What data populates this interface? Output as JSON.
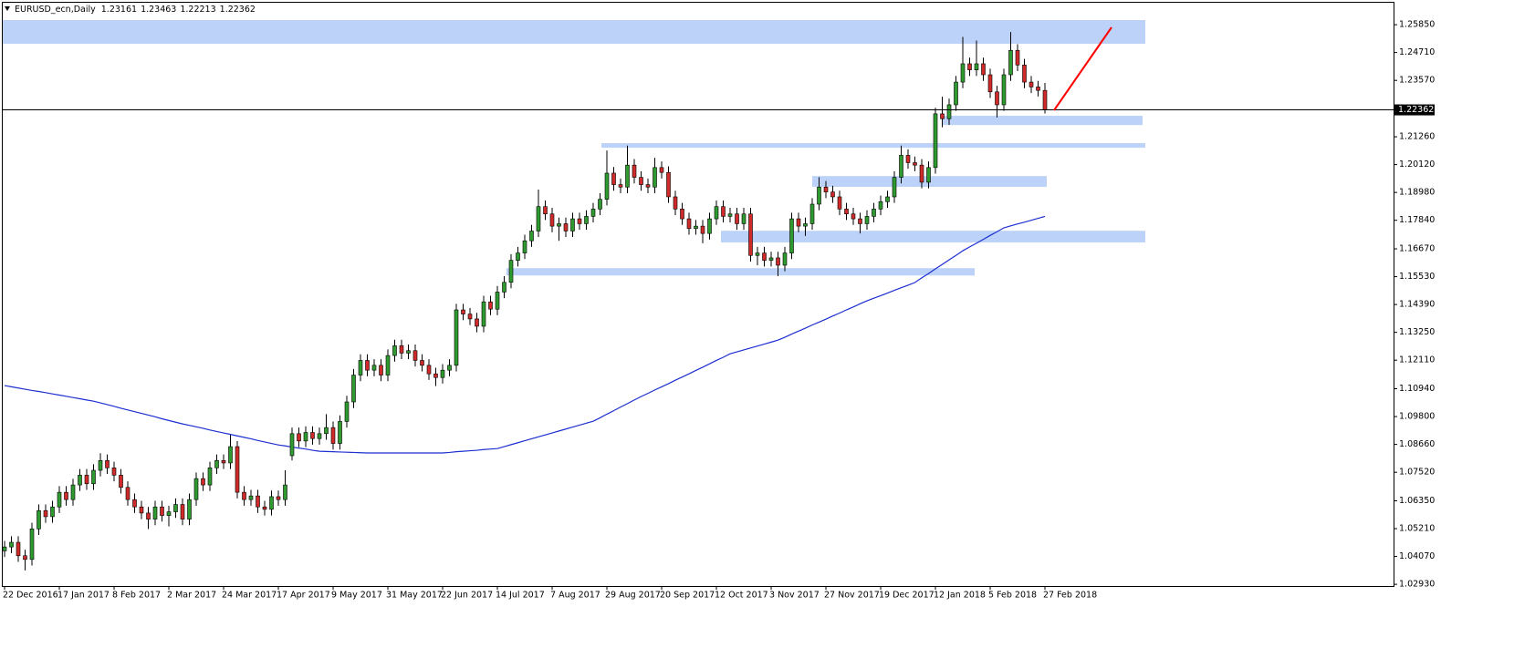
{
  "chart_data": {
    "type": "candlestick",
    "title": "EURUSD_ecn,Daily",
    "categories": [
      "22 Dec 2016",
      null,
      null,
      null,
      null,
      null,
      null,
      null,
      "17 Jan 2017",
      null,
      null,
      null,
      null,
      null,
      null,
      null,
      "8 Feb 2017",
      null,
      null,
      null,
      null,
      null,
      null,
      null,
      "2 Mar 2017",
      null,
      null,
      null,
      null,
      null,
      null,
      null,
      "24 Mar 2017",
      null,
      null,
      null,
      null,
      null,
      null,
      null,
      "17 Apr 2017",
      null,
      null,
      null,
      null,
      null,
      null,
      null,
      "9 May 2017",
      null,
      null,
      null,
      null,
      null,
      null,
      null,
      "31 May 2017",
      null,
      null,
      null,
      null,
      null,
      null,
      null,
      "22 Jun 2017",
      null,
      null,
      null,
      null,
      null,
      null,
      null,
      "14 Jul 2017",
      null,
      null,
      null,
      null,
      null,
      null,
      null,
      "7 Aug 2017",
      null,
      null,
      null,
      null,
      null,
      null,
      null,
      "29 Aug 2017",
      null,
      null,
      null,
      null,
      null,
      null,
      null,
      "20 Sep 2017",
      null,
      null,
      null,
      null,
      null,
      null,
      null,
      "12 Oct 2017",
      null,
      null,
      null,
      null,
      null,
      null,
      null,
      "3 Nov 2017",
      null,
      null,
      null,
      null,
      null,
      null,
      null,
      "27 Nov 2017",
      null,
      null,
      null,
      null,
      null,
      null,
      null,
      "19 Dec 2017",
      null,
      null,
      null,
      null,
      null,
      null,
      null,
      "12 Jan 2018",
      null,
      null,
      null,
      null,
      null,
      null,
      null,
      "5 Feb 2018",
      null,
      null,
      null,
      null,
      null,
      null,
      null,
      "27 Feb 2018"
    ],
    "candles": [
      [
        1.043,
        1.0471,
        1.0405,
        1.0446
      ],
      [
        1.0446,
        1.049,
        1.0421,
        1.0465
      ],
      [
        1.0465,
        1.049,
        1.0385,
        1.041
      ],
      [
        1.041,
        1.0435,
        1.035,
        1.0395
      ],
      [
        1.0395,
        1.0545,
        1.037,
        1.052
      ],
      [
        1.052,
        1.062,
        1.0495,
        1.0595
      ],
      [
        1.0595,
        1.062,
        1.0545,
        1.057
      ],
      [
        1.057,
        1.0635,
        1.0545,
        1.061
      ],
      [
        1.061,
        1.0695,
        1.0585,
        1.067
      ],
      [
        1.067,
        1.0695,
        1.0615,
        1.064
      ],
      [
        1.064,
        1.0725,
        1.0615,
        1.07
      ],
      [
        1.07,
        1.0765,
        1.0675,
        1.074
      ],
      [
        1.074,
        1.0765,
        1.068,
        1.0705
      ],
      [
        1.0705,
        1.0785,
        1.068,
        1.076
      ],
      [
        1.076,
        1.083,
        1.0735,
        1.08
      ],
      [
        1.08,
        1.0825,
        1.0745,
        1.077
      ],
      [
        1.077,
        1.0795,
        1.0715,
        1.074
      ],
      [
        1.074,
        1.0765,
        1.0665,
        1.069
      ],
      [
        1.069,
        1.0715,
        1.0615,
        1.064
      ],
      [
        1.064,
        1.0665,
        1.0585,
        1.061
      ],
      [
        1.061,
        1.0635,
        1.056,
        1.0585
      ],
      [
        1.0585,
        1.061,
        1.052,
        1.056
      ],
      [
        1.056,
        1.0635,
        1.0535,
        1.061
      ],
      [
        1.061,
        1.0635,
        1.055,
        1.0575
      ],
      [
        1.0575,
        1.0615,
        1.053,
        1.059
      ],
      [
        1.059,
        1.0645,
        1.0565,
        1.062
      ],
      [
        1.062,
        1.0645,
        1.0535,
        1.056
      ],
      [
        1.056,
        1.0665,
        1.0535,
        1.064
      ],
      [
        1.064,
        1.0751,
        1.0615,
        1.0726
      ],
      [
        1.0726,
        1.0751,
        1.0675,
        1.07
      ],
      [
        1.07,
        1.0795,
        1.0675,
        1.077
      ],
      [
        1.077,
        1.0825,
        1.0745,
        1.08
      ],
      [
        1.08,
        1.0825,
        1.0765,
        1.079
      ],
      [
        1.079,
        1.0905,
        1.0765,
        1.0857
      ],
      [
        1.0857,
        1.088,
        1.0645,
        1.067
      ],
      [
        1.067,
        1.0695,
        1.0615,
        1.064
      ],
      [
        1.064,
        1.068,
        1.0615,
        1.0655
      ],
      [
        1.0655,
        1.068,
        1.0585,
        1.061
      ],
      [
        1.061,
        1.0635,
        1.0575,
        1.06
      ],
      [
        1.06,
        1.0677,
        1.0575,
        1.0652
      ],
      [
        1.0652,
        1.0677,
        1.0615,
        1.064
      ],
      [
        1.064,
        1.076,
        1.0615,
        1.07
      ],
      [
        1.082,
        1.0935,
        1.08,
        1.091
      ],
      [
        1.091,
        1.0935,
        1.0855,
        1.088
      ],
      [
        1.088,
        1.094,
        1.0855,
        1.0915
      ],
      [
        1.0915,
        1.094,
        1.0865,
        1.089
      ],
      [
        1.089,
        1.0935,
        1.0865,
        1.091
      ],
      [
        1.091,
        1.099,
        1.0885,
        1.0935
      ],
      [
        1.0935,
        1.096,
        1.0845,
        1.087
      ],
      [
        1.087,
        1.0985,
        1.0845,
        1.096
      ],
      [
        1.096,
        1.1065,
        1.0935,
        1.104
      ],
      [
        1.104,
        1.1175,
        1.1015,
        1.115
      ],
      [
        1.115,
        1.1235,
        1.1125,
        1.121
      ],
      [
        1.121,
        1.1235,
        1.1145,
        1.117
      ],
      [
        1.117,
        1.1215,
        1.1145,
        1.119
      ],
      [
        1.119,
        1.1215,
        1.1125,
        1.115
      ],
      [
        1.115,
        1.1255,
        1.1125,
        1.123
      ],
      [
        1.123,
        1.1295,
        1.1205,
        1.127
      ],
      [
        1.127,
        1.1295,
        1.1215,
        1.124
      ],
      [
        1.124,
        1.1275,
        1.1215,
        1.125
      ],
      [
        1.125,
        1.1275,
        1.1185,
        1.121
      ],
      [
        1.121,
        1.1235,
        1.1165,
        1.119
      ],
      [
        1.119,
        1.1215,
        1.113,
        1.1155
      ],
      [
        1.1155,
        1.118,
        1.1105,
        1.114
      ],
      [
        1.114,
        1.1195,
        1.1115,
        1.117
      ],
      [
        1.117,
        1.1215,
        1.1145,
        1.119
      ],
      [
        1.119,
        1.1442,
        1.1165,
        1.1417
      ],
      [
        1.1417,
        1.1442,
        1.1375,
        1.14
      ],
      [
        1.14,
        1.1425,
        1.1355,
        1.138
      ],
      [
        1.138,
        1.1405,
        1.1325,
        1.135
      ],
      [
        1.135,
        1.1475,
        1.1325,
        1.145
      ],
      [
        1.145,
        1.1475,
        1.1395,
        1.142
      ],
      [
        1.142,
        1.1515,
        1.1395,
        1.149
      ],
      [
        1.149,
        1.1555,
        1.1465,
        1.153
      ],
      [
        1.153,
        1.1645,
        1.1505,
        1.162
      ],
      [
        1.162,
        1.1675,
        1.1595,
        1.165
      ],
      [
        1.165,
        1.1725,
        1.1625,
        1.17
      ],
      [
        1.17,
        1.1765,
        1.1675,
        1.174
      ],
      [
        1.174,
        1.191,
        1.1715,
        1.184
      ],
      [
        1.184,
        1.1865,
        1.1785,
        1.181
      ],
      [
        1.181,
        1.1835,
        1.1735,
        1.176
      ],
      [
        1.176,
        1.1795,
        1.17,
        1.177
      ],
      [
        1.177,
        1.1795,
        1.1715,
        1.174
      ],
      [
        1.174,
        1.1815,
        1.1715,
        1.179
      ],
      [
        1.179,
        1.1815,
        1.1745,
        1.177
      ],
      [
        1.177,
        1.1825,
        1.1745,
        1.18
      ],
      [
        1.18,
        1.1855,
        1.1775,
        1.183
      ],
      [
        1.183,
        1.1895,
        1.1805,
        1.187
      ],
      [
        1.187,
        1.207,
        1.1845,
        1.1977
      ],
      [
        1.1977,
        1.2002,
        1.1905,
        1.193
      ],
      [
        1.193,
        1.1955,
        1.1895,
        1.192
      ],
      [
        1.192,
        1.209,
        1.1895,
        1.201
      ],
      [
        1.201,
        1.2035,
        1.1935,
        1.196
      ],
      [
        1.196,
        1.1985,
        1.1905,
        1.193
      ],
      [
        1.193,
        1.1955,
        1.1895,
        1.192
      ],
      [
        1.192,
        1.204,
        1.1895,
        1.2
      ],
      [
        1.2,
        1.2025,
        1.1955,
        1.198
      ],
      [
        1.198,
        1.2005,
        1.1855,
        1.188
      ],
      [
        1.188,
        1.1905,
        1.1805,
        1.183
      ],
      [
        1.183,
        1.1855,
        1.1765,
        1.179
      ],
      [
        1.179,
        1.1815,
        1.1725,
        1.175
      ],
      [
        1.175,
        1.1785,
        1.1725,
        1.176
      ],
      [
        1.176,
        1.1785,
        1.169,
        1.173
      ],
      [
        1.173,
        1.1815,
        1.1705,
        1.179
      ],
      [
        1.179,
        1.1865,
        1.1765,
        1.184
      ],
      [
        1.184,
        1.1865,
        1.1775,
        1.18
      ],
      [
        1.18,
        1.1835,
        1.1775,
        1.181
      ],
      [
        1.181,
        1.1835,
        1.1745,
        1.177
      ],
      [
        1.177,
        1.1835,
        1.1745,
        1.181
      ],
      [
        1.181,
        1.1835,
        1.1615,
        1.164
      ],
      [
        1.164,
        1.1675,
        1.16,
        1.165
      ],
      [
        1.165,
        1.1675,
        1.1595,
        1.162
      ],
      [
        1.162,
        1.1655,
        1.1595,
        1.163
      ],
      [
        1.163,
        1.1655,
        1.1555,
        1.16
      ],
      [
        1.16,
        1.1675,
        1.1575,
        1.165
      ],
      [
        1.165,
        1.1815,
        1.1625,
        1.179
      ],
      [
        1.179,
        1.1815,
        1.1735,
        1.176
      ],
      [
        1.176,
        1.1795,
        1.172,
        1.177
      ],
      [
        1.177,
        1.1875,
        1.1745,
        1.185
      ],
      [
        1.185,
        1.196,
        1.1825,
        1.192
      ],
      [
        1.192,
        1.1945,
        1.1875,
        1.19
      ],
      [
        1.19,
        1.1925,
        1.1855,
        1.188
      ],
      [
        1.188,
        1.1905,
        1.1805,
        1.183
      ],
      [
        1.183,
        1.1855,
        1.1785,
        1.181
      ],
      [
        1.181,
        1.1835,
        1.1765,
        1.179
      ],
      [
        1.179,
        1.1815,
        1.173,
        1.177
      ],
      [
        1.177,
        1.1825,
        1.1745,
        1.18
      ],
      [
        1.18,
        1.1855,
        1.1775,
        1.183
      ],
      [
        1.183,
        1.1885,
        1.1805,
        1.186
      ],
      [
        1.186,
        1.1905,
        1.1835,
        1.188
      ],
      [
        1.188,
        1.1985,
        1.1855,
        1.196
      ],
      [
        1.196,
        1.209,
        1.1935,
        1.205
      ],
      [
        1.205,
        1.2075,
        1.1995,
        1.202
      ],
      [
        1.202,
        1.2045,
        1.1985,
        1.201
      ],
      [
        1.201,
        1.2035,
        1.1915,
        1.194
      ],
      [
        1.194,
        1.2025,
        1.1915,
        1.2
      ],
      [
        1.2,
        1.2245,
        1.1975,
        1.222
      ],
      [
        1.222,
        1.229,
        1.2165,
        1.22
      ],
      [
        1.22,
        1.2282,
        1.2175,
        1.2257
      ],
      [
        1.2257,
        1.2375,
        1.2232,
        1.235
      ],
      [
        1.235,
        1.2535,
        1.2325,
        1.2425
      ],
      [
        1.2425,
        1.245,
        1.2375,
        1.24
      ],
      [
        1.24,
        1.252,
        1.2375,
        1.2425
      ],
      [
        1.2425,
        1.245,
        1.2355,
        1.238
      ],
      [
        1.238,
        1.2405,
        1.2285,
        1.231
      ],
      [
        1.231,
        1.2335,
        1.2205,
        1.2257
      ],
      [
        1.2257,
        1.2405,
        1.2232,
        1.238
      ],
      [
        1.238,
        1.2555,
        1.2355,
        1.248
      ],
      [
        1.248,
        1.2505,
        1.2395,
        1.242
      ],
      [
        1.242,
        1.2445,
        1.2325,
        1.235
      ],
      [
        1.235,
        1.2375,
        1.2305,
        1.233
      ],
      [
        1.233,
        1.2355,
        1.2291,
        1.2316
      ],
      [
        1.23161,
        1.23463,
        1.22213,
        1.22362
      ]
    ],
    "up_color": "#2f9a2f",
    "down_color": "#d02a2a",
    "ma": {
      "color": "#1c2fd0",
      "values": [
        1.1107,
        1.1102,
        1.1097,
        1.1092,
        1.1087,
        1.1083,
        1.1078,
        1.1073,
        1.1068,
        1.1063,
        1.1058,
        1.1053,
        1.1048,
        1.1043,
        1.1036,
        1.1029,
        1.1022,
        1.1014,
        1.1007,
        1.1,
        1.0993,
        1.0986,
        1.0979,
        1.0971,
        1.0964,
        1.0957,
        1.095,
        1.0944,
        1.0938,
        1.0932,
        1.0925,
        1.0919,
        1.0913,
        1.0907,
        1.0901,
        1.0895,
        1.0889,
        1.0882,
        1.0876,
        1.087,
        1.0864,
        1.086,
        1.0855,
        1.0851,
        1.0847,
        1.0842,
        1.0838,
        1.0837,
        1.0836,
        1.0835,
        1.0834,
        1.0833,
        1.0832,
        1.0831,
        1.0831,
        1.0831,
        1.0831,
        1.0831,
        1.0831,
        1.0831,
        1.0831,
        1.0831,
        1.0831,
        1.0831,
        1.0831,
        1.0833,
        1.0836,
        1.0838,
        1.084,
        1.0842,
        1.0845,
        1.0847,
        1.0849,
        1.0857,
        1.0865,
        1.0873,
        1.0881,
        1.0889,
        1.0897,
        1.0905,
        1.0913,
        1.0921,
        1.0929,
        1.0937,
        1.0945,
        1.0953,
        1.0961,
        1.0975,
        1.099,
        1.1004,
        1.1019,
        1.1033,
        1.1048,
        1.1062,
        1.1075,
        1.1089,
        1.1102,
        1.1115,
        1.1129,
        1.1142,
        1.1155,
        1.1169,
        1.1182,
        1.1196,
        1.121,
        1.1223,
        1.1237,
        1.1245,
        1.1253,
        1.1261,
        1.1269,
        1.1277,
        1.1285,
        1.1293,
        1.1305,
        1.1318,
        1.133,
        1.1342,
        1.1355,
        1.1367,
        1.1379,
        1.1392,
        1.1404,
        1.1417,
        1.1429,
        1.1442,
        1.1454,
        1.1465,
        1.1475,
        1.1486,
        1.1497,
        1.1508,
        1.1518,
        1.1529,
        1.1548,
        1.1566,
        1.1585,
        1.1603,
        1.1622,
        1.164,
        1.1659,
        1.1675,
        1.169,
        1.1706,
        1.1722,
        1.1737,
        1.1753,
        1.1761,
        1.1769,
        1.1776,
        1.1784,
        1.1792,
        1.18
      ]
    },
    "zone_color": "#bcd2f8",
    "zones": [
      {
        "high": 1.2604,
        "low": 1.2507
      },
      {
        "high": 1.2212,
        "low": 1.2174
      },
      {
        "high": 1.21,
        "low": 1.2081
      },
      {
        "high": 1.1965,
        "low": 1.1921
      },
      {
        "high": 1.1741,
        "low": 1.1693
      },
      {
        "high": 1.1588,
        "low": 1.1558
      }
    ],
    "ylim": [
      1.0286,
      1.2675
    ],
    "yticks": [
      {
        "value": 1.2585,
        "label": "1.25850"
      },
      {
        "value": 1.2471,
        "label": "1.24710"
      },
      {
        "value": 1.2357,
        "label": "1.23570"
      },
      {
        "value": 1.2126,
        "label": "1.21260"
      },
      {
        "value": 1.2012,
        "label": "1.20120"
      },
      {
        "value": 1.1898,
        "label": "1.18980"
      },
      {
        "value": 1.1784,
        "label": "1.17840"
      },
      {
        "value": 1.1667,
        "label": "1.16670"
      },
      {
        "value": 1.1553,
        "label": "1.15530"
      },
      {
        "value": 1.1439,
        "label": "1.14390"
      },
      {
        "value": 1.1325,
        "label": "1.13250"
      },
      {
        "value": 1.1211,
        "label": "1.12110"
      },
      {
        "value": 1.1094,
        "label": "1.10940"
      },
      {
        "value": 1.098,
        "label": "1.09800"
      },
      {
        "value": 1.0866,
        "label": "1.08660"
      },
      {
        "value": 1.0752,
        "label": "1.07520"
      },
      {
        "value": 1.0635,
        "label": "1.06350"
      },
      {
        "value": 1.0521,
        "label": "1.05210"
      },
      {
        "value": 1.0407,
        "label": "1.04070"
      },
      {
        "value": 1.0293,
        "label": "1.02930"
      }
    ]
  }
}
